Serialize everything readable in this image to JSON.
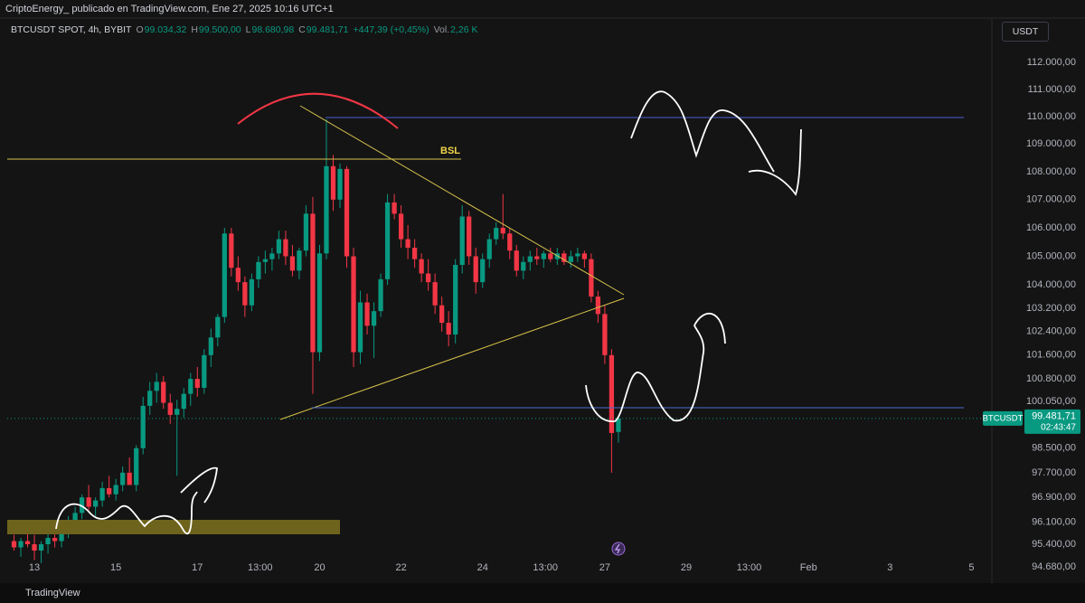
{
  "chart_data": {
    "type": "candlestick",
    "header": "CriptoEnergy_ publicado en TradingView.com, Ene 27, 2025 10:16 UTC+1",
    "title": "BTCUSDT SPOT, 4h, BYBIT",
    "ohlc": [
      {
        "label": "O",
        "value": "99.034,32"
      },
      {
        "label": "H",
        "value": "99.500,00"
      },
      {
        "label": "L",
        "value": "98.680,98"
      },
      {
        "label": "C",
        "value": "99.481,71"
      }
    ],
    "change": "+447,39 (+0,45%)",
    "volume_label": "Vol.",
    "volume": "2,26 K",
    "currency": "USDT",
    "annotation": "BSL",
    "price_tag": {
      "symbol": "BTCUSDT",
      "price": "99.481,71",
      "countdown": "02:43:47"
    },
    "footer": "TradingView",
    "up_color": "#089981",
    "down_color": "#f23645",
    "log_scale": true,
    "grid": false,
    "x": [
      -12,
      -8,
      -4,
      0,
      4,
      8,
      12,
      16,
      20,
      24,
      28,
      32,
      36,
      40,
      44,
      48,
      52,
      56,
      60,
      64,
      68,
      72,
      76,
      80,
      84,
      88,
      92,
      96,
      100,
      104,
      108,
      112,
      116,
      120,
      124,
      128,
      132,
      136,
      140,
      144,
      148,
      152,
      156,
      160,
      164,
      168,
      172,
      176,
      180,
      184,
      188,
      192,
      196,
      200,
      204,
      208,
      212,
      216,
      220,
      224,
      228,
      232,
      236,
      240,
      244,
      248,
      252,
      256,
      260,
      264,
      268,
      272,
      276,
      280,
      284,
      288,
      292,
      296,
      300,
      304,
      308,
      312,
      316,
      320,
      324,
      328,
      332,
      336,
      340,
      344
    ],
    "open": [
      95500,
      95300,
      95500,
      95400,
      95200,
      95400,
      95600,
      95500,
      95800,
      96100,
      96400,
      96900,
      96600,
      96800,
      97200,
      97000,
      97300,
      97700,
      97300,
      98500,
      99900,
      100400,
      100700,
      100000,
      99600,
      99800,
      100300,
      100800,
      100500,
      101600,
      102200,
      102900,
      105800,
      104600,
      104100,
      103300,
      104200,
      104800,
      104900,
      105100,
      105600,
      105000,
      104500,
      105200,
      106500,
      101700,
      105100,
      108200,
      107000,
      108100,
      105000,
      101700,
      103400,
      102600,
      103100,
      104200,
      106900,
      106500,
      105600,
      105300,
      104900,
      104400,
      104100,
      103300,
      102700,
      102300,
      104700,
      106400,
      105000,
      104100,
      104900,
      105600,
      106000,
      105800,
      105200,
      104500,
      104800,
      105000,
      104900,
      105100,
      104900,
      105100,
      104800,
      105000,
      105100,
      104900,
      103600,
      103000,
      101600,
      99034.32
    ],
    "high": [
      95700,
      95600,
      95800,
      95700,
      95500,
      95900,
      95800,
      96000,
      96300,
      96600,
      97000,
      97300,
      96900,
      97400,
      97600,
      97500,
      97900,
      98200,
      98600,
      100200,
      100700,
      101000,
      100900,
      100300,
      100100,
      100500,
      101000,
      101200,
      101800,
      102500,
      103000,
      106000,
      106000,
      105000,
      104300,
      104400,
      105000,
      105200,
      105300,
      105900,
      105900,
      105400,
      105300,
      106800,
      107100,
      105400,
      109900,
      108600,
      108300,
      108200,
      105300,
      103800,
      103700,
      103400,
      104400,
      107200,
      107200,
      106800,
      106100,
      105600,
      105100,
      104900,
      104400,
      103600,
      103100,
      104900,
      106800,
      106600,
      105300,
      105100,
      105800,
      106200,
      107200,
      106000,
      105400,
      105000,
      105200,
      105300,
      105200,
      105300,
      105300,
      105200,
      105200,
      105300,
      105200,
      105100,
      103800,
      103300,
      101800,
      99500
    ],
    "low": [
      95200,
      95000,
      95300,
      94900,
      94800,
      95100,
      95300,
      95300,
      95600,
      95900,
      96200,
      96500,
      96300,
      96600,
      96900,
      96800,
      97100,
      97400,
      97100,
      98300,
      99600,
      100000,
      99800,
      99300,
      97600,
      99500,
      99900,
      100200,
      100300,
      101200,
      101900,
      102700,
      104300,
      103800,
      102900,
      103100,
      103900,
      104400,
      104500,
      104900,
      104700,
      104300,
      104200,
      105000,
      100300,
      101400,
      104900,
      106600,
      106700,
      104600,
      101200,
      101300,
      102300,
      101500,
      102900,
      104000,
      106300,
      105300,
      104900,
      104600,
      104100,
      103800,
      103000,
      102400,
      101900,
      102000,
      104400,
      104700,
      103700,
      103900,
      104600,
      105400,
      105600,
      104900,
      104300,
      104200,
      104500,
      104700,
      104600,
      104800,
      104700,
      104700,
      104600,
      104800,
      104600,
      103400,
      102700,
      101300,
      97700,
      98680.98
    ],
    "close": [
      95300,
      95500,
      95400,
      95200,
      95400,
      95600,
      95500,
      95800,
      96100,
      96400,
      96900,
      96600,
      96800,
      97200,
      97000,
      97300,
      97700,
      97300,
      98500,
      99900,
      100400,
      100700,
      100000,
      99600,
      99800,
      100300,
      100800,
      100500,
      101600,
      102200,
      102900,
      105800,
      104600,
      104100,
      103300,
      104200,
      104800,
      104900,
      105100,
      105600,
      105000,
      104500,
      105200,
      106500,
      101700,
      105100,
      108200,
      107000,
      108100,
      105000,
      101700,
      103400,
      102600,
      103100,
      104200,
      106900,
      106500,
      105600,
      105300,
      104900,
      104400,
      104100,
      103300,
      102700,
      102300,
      104700,
      106400,
      105000,
      104100,
      104900,
      105600,
      106000,
      105800,
      105200,
      104500,
      104800,
      105000,
      104900,
      105100,
      104900,
      105100,
      104800,
      105000,
      105100,
      104900,
      103600,
      103000,
      101600,
      99000,
      99481.71
    ],
    "xlim": [
      -16,
      564
    ],
    "xticks": [
      {
        "value": 0,
        "label": "13"
      },
      {
        "value": 48,
        "label": "15"
      },
      {
        "value": 96,
        "label": "17"
      },
      {
        "value": 133,
        "label": "13:00"
      },
      {
        "value": 168,
        "label": "20"
      },
      {
        "value": 216,
        "label": "22"
      },
      {
        "value": 264,
        "label": "24"
      },
      {
        "value": 301,
        "label": "13:00"
      },
      {
        "value": 336,
        "label": "27"
      },
      {
        "value": 384,
        "label": "29"
      },
      {
        "value": 421,
        "label": "13:00"
      },
      {
        "value": 456,
        "label": "Feb"
      },
      {
        "value": 504,
        "label": "3"
      },
      {
        "value": 552,
        "label": "5"
      }
    ],
    "ylim": [
      94400,
      113600
    ],
    "yticks": [
      {
        "value": 112000,
        "label": "112.000,00"
      },
      {
        "value": 111000,
        "label": "111.000,00"
      },
      {
        "value": 110000,
        "label": "110.000,00"
      },
      {
        "value": 109000,
        "label": "109.000,00"
      },
      {
        "value": 108000,
        "label": "108.000,00"
      },
      {
        "value": 107000,
        "label": "107.000,00"
      },
      {
        "value": 106000,
        "label": "106.000,00"
      },
      {
        "value": 105000,
        "label": "105.000,00"
      },
      {
        "value": 104000,
        "label": "104.000,00"
      },
      {
        "value": 103200,
        "label": "103.200,00"
      },
      {
        "value": 102400,
        "label": "102.400,00"
      },
      {
        "value": 101600,
        "label": "101.600,00"
      },
      {
        "value": 100800,
        "label": "100.800,00"
      },
      {
        "value": 100050,
        "label": "100.050,00"
      },
      {
        "value": 98500,
        "label": "98.500,00"
      },
      {
        "value": 97700,
        "label": "97.700,00"
      },
      {
        "value": 96900,
        "label": "96.900,00"
      },
      {
        "value": 96100,
        "label": "96.100,00"
      },
      {
        "value": 95400,
        "label": "95.400,00"
      },
      {
        "value": 94680,
        "label": "94.680,00"
      }
    ]
  }
}
